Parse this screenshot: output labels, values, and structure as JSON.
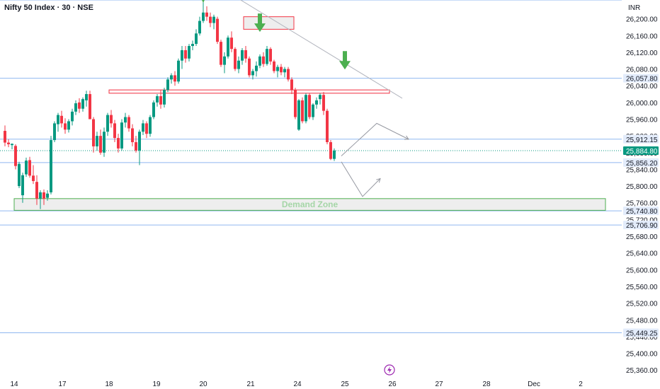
{
  "header": {
    "title": "Nifty 50 Index · 30 · NSE",
    "currency": "INR"
  },
  "colors": {
    "up": "#089981",
    "down": "#f23645",
    "level_line": "#90b8f0",
    "tag_bg": "#e3ecfb",
    "current_bg": "#089981",
    "zone_border": "#4caf50",
    "arrow": "#4caf50"
  },
  "chart_data": {
    "type": "candlestick",
    "y_axis": {
      "ylim": [
        25335,
        26245
      ],
      "ticks": [
        "26,200.00",
        "26,160.00",
        "26,120.00",
        "26,080.00",
        "26,040.00",
        "26,000.00",
        "25,960.00",
        "25,920.00",
        "25,880.00",
        "25,840.00",
        "25,800.00",
        "25,760.00",
        "25,720.00",
        "25,680.00",
        "25,640.00",
        "25,600.00",
        "25,560.00",
        "25,520.00",
        "25,480.00",
        "25,440.00",
        "25,400.00",
        "25,360.00"
      ]
    },
    "x_axis": {
      "labels": [
        "14",
        "17",
        "18",
        "19",
        "20",
        "21",
        "24",
        "25",
        "26",
        "27",
        "28",
        "Dec",
        "2"
      ]
    },
    "price_levels": [
      "26,057.80",
      "25,912.15",
      "25,856.20",
      "25,740.80",
      "25,706.90",
      "25,449.25"
    ],
    "top_level": 26245,
    "current_price": "25,884.80",
    "zones": [
      {
        "label": "Demand Zone",
        "from": 25742,
        "to": 25770,
        "start": "14"
      },
      {
        "label": "",
        "from": 26022,
        "to": 26030,
        "start": "18"
      },
      {
        "label": "",
        "from": 26175,
        "to": 26205,
        "start": "21"
      }
    ],
    "candles": [
      [
        25932,
        25945,
        25895,
        25904
      ],
      [
        25904,
        25912,
        25893,
        25900
      ],
      [
        25898,
        25902,
        25888,
        25901
      ],
      [
        25896,
        25900,
        25840,
        25848
      ],
      [
        25800,
        25858,
        25795,
        25853
      ],
      [
        25778,
        25832,
        25760,
        25826
      ],
      [
        25828,
        25868,
        25822,
        25861
      ],
      [
        25862,
        25870,
        25820,
        25825
      ],
      [
        25825,
        25850,
        25805,
        25812
      ],
      [
        25810,
        25826,
        25755,
        25770
      ],
      [
        25770,
        25790,
        25745,
        25785
      ],
      [
        25785,
        25792,
        25755,
        25770
      ],
      [
        25772,
        25790,
        25765,
        25782
      ],
      [
        25785,
        25920,
        25780,
        25910
      ],
      [
        25910,
        25955,
        25905,
        25950
      ],
      [
        25948,
        25975,
        25930,
        25970
      ],
      [
        25968,
        25980,
        25940,
        25950
      ],
      [
        25950,
        25962,
        25925,
        25935
      ],
      [
        25935,
        25960,
        25928,
        25955
      ],
      [
        25955,
        25985,
        25945,
        25978
      ],
      [
        25978,
        26005,
        25970,
        25998
      ],
      [
        26000,
        26010,
        25975,
        25985
      ],
      [
        25985,
        26012,
        25978,
        26008
      ],
      [
        26005,
        26028,
        25990,
        26020
      ],
      [
        26020,
        26028,
        25960,
        25960
      ],
      [
        25960,
        25965,
        25880,
        25895
      ],
      [
        25895,
        25930,
        25885,
        25920
      ],
      [
        25920,
        25935,
        25875,
        25880
      ],
      [
        25880,
        25940,
        25870,
        25930
      ],
      [
        25930,
        25975,
        25920,
        25970
      ],
      [
        25970,
        25982,
        25940,
        25950
      ],
      [
        25950,
        25958,
        25905,
        25915
      ],
      [
        25915,
        25925,
        25880,
        25890
      ],
      [
        25890,
        25960,
        25885,
        25952
      ],
      [
        25952,
        25975,
        25940,
        25965
      ],
      [
        25965,
        25970,
        25930,
        25938
      ],
      [
        25938,
        25948,
        25895,
        25905
      ],
      [
        25905,
        25920,
        25880,
        25885
      ],
      [
        25885,
        25935,
        25850,
        25930
      ],
      [
        25930,
        25958,
        25922,
        25950
      ],
      [
        25950,
        25955,
        25915,
        25925
      ],
      [
        25925,
        25970,
        25918,
        25965
      ],
      [
        25965,
        26005,
        25960,
        26000
      ],
      [
        26000,
        26020,
        25990,
        26015
      ],
      [
        26015,
        26030,
        25985,
        25995
      ],
      [
        25995,
        26035,
        25988,
        26030
      ],
      [
        26030,
        26060,
        26025,
        26055
      ],
      [
        26055,
        26070,
        26045,
        26065
      ],
      [
        26065,
        26075,
        26040,
        26050
      ],
      [
        26050,
        26105,
        26045,
        26100
      ],
      [
        26100,
        26135,
        26080,
        26125
      ],
      [
        26125,
        26135,
        26095,
        26105
      ],
      [
        26105,
        26140,
        26098,
        26135
      ],
      [
        26135,
        26148,
        26125,
        26140
      ],
      [
        26140,
        26175,
        26135,
        26165
      ],
      [
        26165,
        26205,
        26160,
        26195
      ],
      [
        26195,
        26250,
        26190,
        26215
      ],
      [
        26215,
        26230,
        26195,
        26205
      ],
      [
        26205,
        26215,
        26180,
        26190
      ],
      [
        26190,
        26210,
        26175,
        26205
      ],
      [
        26200,
        26205,
        26140,
        26145
      ],
      [
        26145,
        26150,
        26085,
        26090
      ],
      [
        26090,
        26120,
        26070,
        26110
      ],
      [
        26110,
        26160,
        26105,
        26155
      ],
      [
        26155,
        26170,
        26120,
        26128
      ],
      [
        26128,
        26132,
        26075,
        26080
      ],
      [
        26080,
        26110,
        26070,
        26100
      ],
      [
        26100,
        26130,
        26090,
        26125
      ],
      [
        26125,
        26135,
        26095,
        26105
      ],
      [
        26105,
        26110,
        26060,
        26065
      ],
      [
        26065,
        26080,
        26055,
        26075
      ],
      [
        26075,
        26098,
        26062,
        26088
      ],
      [
        26088,
        26115,
        26082,
        26110
      ],
      [
        26110,
        26120,
        26085,
        26092
      ],
      [
        26092,
        26135,
        26088,
        26128
      ],
      [
        26128,
        26132,
        26090,
        26098
      ],
      [
        26098,
        26102,
        26070,
        26075
      ],
      [
        26075,
        26090,
        26060,
        26085
      ],
      [
        26085,
        26092,
        26065,
        26072
      ],
      [
        26072,
        26085,
        26060,
        26080
      ],
      [
        26080,
        26085,
        26050,
        26055
      ],
      [
        26055,
        26060,
        26020,
        26030
      ],
      [
        26030,
        26035,
        25960,
        25965
      ],
      [
        25935,
        26008,
        25932,
        26005
      ],
      [
        26005,
        26012,
        25950,
        25955
      ],
      [
        25955,
        26022,
        25950,
        26018
      ],
      [
        26018,
        26022,
        25960,
        25965
      ],
      [
        25965,
        25998,
        25958,
        25995
      ],
      [
        25995,
        26012,
        25985,
        26005
      ],
      [
        26008,
        26022,
        25995,
        26018
      ],
      [
        26018,
        26025,
        25970,
        25980
      ],
      [
        25980,
        25985,
        25900,
        25905
      ],
      [
        25905,
        25910,
        25862,
        25865
      ],
      [
        25865,
        25890,
        25860,
        25885
      ]
    ],
    "annotations": {
      "trendline": [
        [
          0,
          26250
        ],
        [
          105,
          26010
        ]
      ],
      "peak_marker_candle": 56,
      "green_arrows": [
        [
          72,
          26162
        ],
        [
          96,
          26072
        ]
      ],
      "projection_up": [
        [
          95,
          25872
        ],
        [
          105,
          25950
        ],
        [
          114,
          25912
        ]
      ],
      "projection_down": [
        [
          95,
          25858
        ],
        [
          101,
          25775
        ],
        [
          106,
          25818
        ]
      ]
    }
  }
}
